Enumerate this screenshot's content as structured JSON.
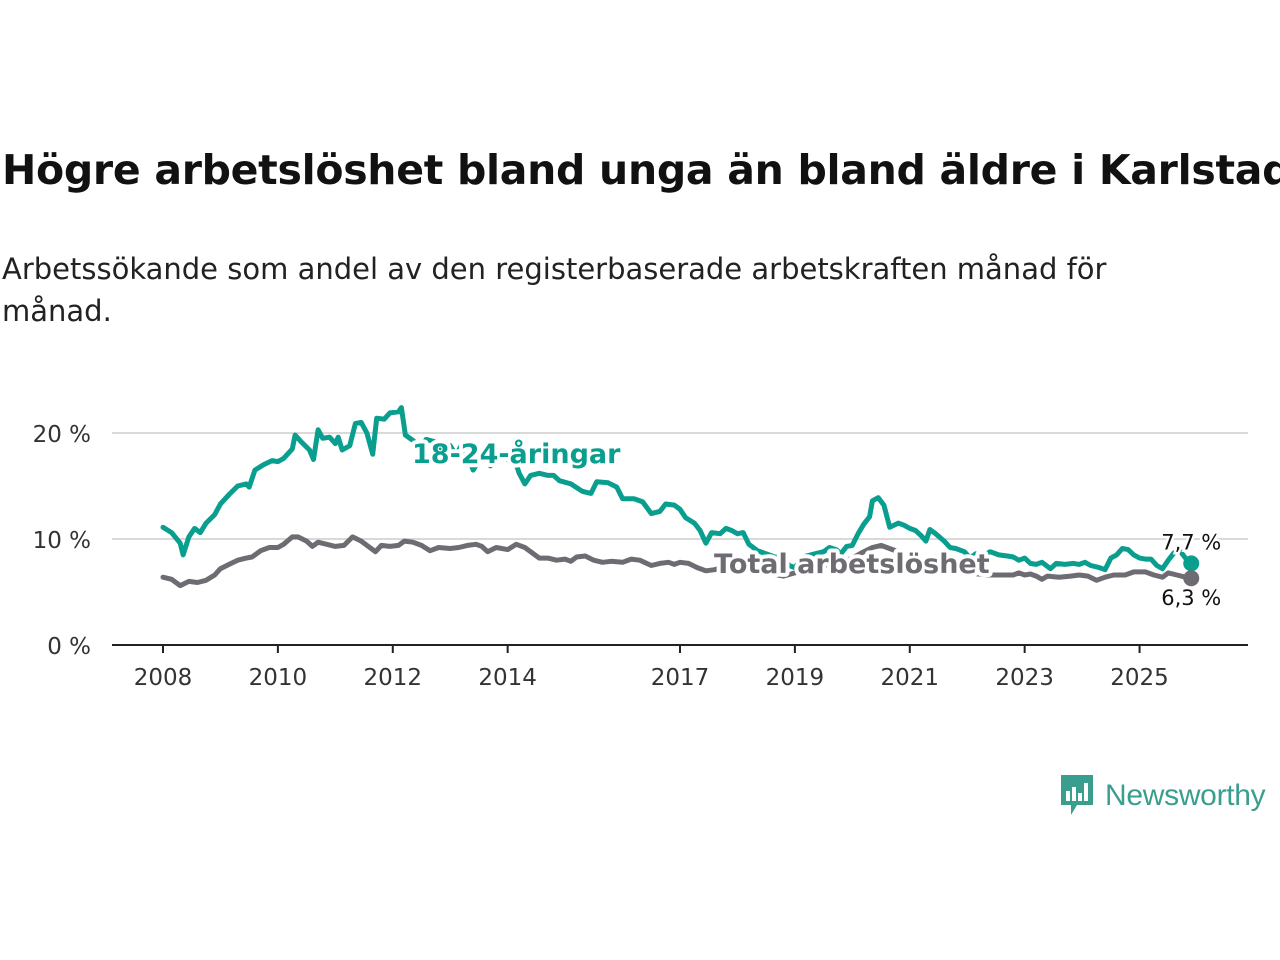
{
  "title": "Högre arbetslöshet bland unga än bland äldre i Karlstad",
  "subtitle": "Arbetssökande som andel av den registerbaserade arbetskraften månad för månad.",
  "logo": {
    "text": "Newsworthy",
    "icon": "newsworthy-chart-bubble-icon"
  },
  "colors": {
    "youth": "#0a9e8e",
    "total": "#6e6c72",
    "grid": "#d9d9d9",
    "axis": "#222222"
  },
  "chart_data": {
    "type": "line",
    "title": "Högre arbetslöshet bland unga än bland äldre i Karlstad",
    "xlabel": "",
    "ylabel": "",
    "xlim": [
      2008,
      2026.0
    ],
    "ylim": [
      0,
      20
    ],
    "grid": true,
    "y_ticks": [
      {
        "value": 0,
        "label": "0 %"
      },
      {
        "value": 10,
        "label": "10 %"
      },
      {
        "value": 20,
        "label": "20 %"
      }
    ],
    "x_ticks": [
      {
        "value": 2008,
        "label": "2008"
      },
      {
        "value": 2010,
        "label": "2010"
      },
      {
        "value": 2012,
        "label": "2012"
      },
      {
        "value": 2014,
        "label": "2014"
      },
      {
        "value": 2017,
        "label": "2017"
      },
      {
        "value": 2019,
        "label": "2019"
      },
      {
        "value": 2021,
        "label": "2021"
      },
      {
        "value": 2023,
        "label": "2023"
      },
      {
        "value": 2025,
        "label": "2025"
      }
    ],
    "series": [
      {
        "name": "18-24-åringar",
        "label": "18-24-åringar",
        "color": "#0a9e8e",
        "end_label": "7,7 %",
        "points": [
          [
            2008.0,
            11.1
          ],
          [
            2008.15,
            10.6
          ],
          [
            2008.3,
            9.6
          ],
          [
            2008.35,
            8.5
          ],
          [
            2008.45,
            10.2
          ],
          [
            2008.55,
            11.0
          ],
          [
            2008.65,
            10.6
          ],
          [
            2008.75,
            11.5
          ],
          [
            2008.9,
            12.3
          ],
          [
            2009.0,
            13.3
          ],
          [
            2009.15,
            14.2
          ],
          [
            2009.3,
            15.0
          ],
          [
            2009.45,
            15.2
          ],
          [
            2009.5,
            14.9
          ],
          [
            2009.6,
            16.5
          ],
          [
            2009.75,
            17.0
          ],
          [
            2009.9,
            17.4
          ],
          [
            2010.0,
            17.3
          ],
          [
            2010.1,
            17.6
          ],
          [
            2010.25,
            18.5
          ],
          [
            2010.3,
            19.8
          ],
          [
            2010.4,
            19.2
          ],
          [
            2010.55,
            18.4
          ],
          [
            2010.62,
            17.5
          ],
          [
            2010.7,
            20.3
          ],
          [
            2010.78,
            19.5
          ],
          [
            2010.9,
            19.6
          ],
          [
            2011.0,
            19.0
          ],
          [
            2011.05,
            19.6
          ],
          [
            2011.12,
            18.4
          ],
          [
            2011.25,
            18.8
          ],
          [
            2011.35,
            20.9
          ],
          [
            2011.45,
            21.0
          ],
          [
            2011.55,
            20.0
          ],
          [
            2011.65,
            18.0
          ],
          [
            2011.72,
            21.4
          ],
          [
            2011.85,
            21.3
          ],
          [
            2011.95,
            21.9
          ],
          [
            2012.1,
            22.0
          ],
          [
            2012.15,
            22.4
          ],
          [
            2012.22,
            19.8
          ],
          [
            2012.35,
            19.3
          ],
          [
            2012.5,
            18.5
          ],
          [
            2012.58,
            19.4
          ],
          [
            2012.72,
            19.2
          ],
          [
            2012.85,
            18.4
          ],
          [
            2013.0,
            18.8
          ],
          [
            2013.1,
            17.9
          ],
          [
            2013.2,
            18.9
          ],
          [
            2013.3,
            17.9
          ],
          [
            2013.4,
            16.5
          ],
          [
            2013.5,
            17.4
          ],
          [
            2013.6,
            18.0
          ],
          [
            2013.7,
            16.9
          ],
          [
            2013.8,
            18.0
          ],
          [
            2013.95,
            18.0
          ],
          [
            2014.05,
            17.2
          ],
          [
            2014.12,
            17.5
          ],
          [
            2014.2,
            16.2
          ],
          [
            2014.3,
            15.2
          ],
          [
            2014.4,
            16.0
          ],
          [
            2014.55,
            16.2
          ],
          [
            2014.7,
            16.0
          ],
          [
            2014.8,
            16.0
          ],
          [
            2014.9,
            15.5
          ],
          [
            2015.1,
            15.2
          ],
          [
            2015.3,
            14.5
          ],
          [
            2015.45,
            14.3
          ],
          [
            2015.55,
            15.4
          ],
          [
            2015.75,
            15.3
          ],
          [
            2015.9,
            14.9
          ],
          [
            2016.0,
            13.8
          ],
          [
            2016.2,
            13.8
          ],
          [
            2016.35,
            13.5
          ],
          [
            2016.5,
            12.4
          ],
          [
            2016.65,
            12.6
          ],
          [
            2016.75,
            13.3
          ],
          [
            2016.9,
            13.2
          ],
          [
            2017.0,
            12.8
          ],
          [
            2017.1,
            12.0
          ],
          [
            2017.25,
            11.5
          ],
          [
            2017.35,
            10.8
          ],
          [
            2017.45,
            9.6
          ],
          [
            2017.55,
            10.6
          ],
          [
            2017.7,
            10.5
          ],
          [
            2017.8,
            11.0
          ],
          [
            2017.9,
            10.8
          ],
          [
            2018.0,
            10.5
          ],
          [
            2018.1,
            10.6
          ],
          [
            2018.2,
            9.5
          ],
          [
            2018.35,
            8.9
          ],
          [
            2018.5,
            8.6
          ],
          [
            2018.65,
            8.3
          ],
          [
            2018.8,
            8.2
          ],
          [
            2018.9,
            7.5
          ],
          [
            2019.0,
            7.3
          ],
          [
            2019.1,
            8.0
          ],
          [
            2019.2,
            8.4
          ],
          [
            2019.35,
            8.6
          ],
          [
            2019.5,
            8.8
          ],
          [
            2019.6,
            9.2
          ],
          [
            2019.72,
            9.0
          ],
          [
            2019.8,
            8.6
          ],
          [
            2019.9,
            9.3
          ],
          [
            2020.0,
            9.4
          ],
          [
            2020.1,
            10.5
          ],
          [
            2020.2,
            11.4
          ],
          [
            2020.3,
            12.1
          ],
          [
            2020.35,
            13.6
          ],
          [
            2020.45,
            13.9
          ],
          [
            2020.55,
            13.2
          ],
          [
            2020.65,
            11.1
          ],
          [
            2020.8,
            11.5
          ],
          [
            2020.9,
            11.3
          ],
          [
            2021.0,
            11.0
          ],
          [
            2021.1,
            10.8
          ],
          [
            2021.2,
            10.3
          ],
          [
            2021.28,
            9.8
          ],
          [
            2021.35,
            10.9
          ],
          [
            2021.45,
            10.5
          ],
          [
            2021.6,
            9.8
          ],
          [
            2021.7,
            9.2
          ],
          [
            2021.8,
            9.1
          ],
          [
            2021.95,
            8.8
          ],
          [
            2022.05,
            8.2
          ],
          [
            2022.15,
            8.6
          ],
          [
            2022.3,
            8.5
          ],
          [
            2022.4,
            8.8
          ],
          [
            2022.55,
            8.5
          ],
          [
            2022.7,
            8.4
          ],
          [
            2022.8,
            8.3
          ],
          [
            2022.9,
            8.0
          ],
          [
            2023.0,
            8.2
          ],
          [
            2023.1,
            7.7
          ],
          [
            2023.2,
            7.6
          ],
          [
            2023.3,
            7.8
          ],
          [
            2023.45,
            7.2
          ],
          [
            2023.55,
            7.7
          ],
          [
            2023.7,
            7.6
          ],
          [
            2023.85,
            7.7
          ],
          [
            2023.95,
            7.6
          ],
          [
            2024.05,
            7.8
          ],
          [
            2024.15,
            7.5
          ],
          [
            2024.3,
            7.3
          ],
          [
            2024.4,
            7.1
          ],
          [
            2024.5,
            8.2
          ],
          [
            2024.6,
            8.5
          ],
          [
            2024.7,
            9.1
          ],
          [
            2024.8,
            9.0
          ],
          [
            2024.9,
            8.5
          ],
          [
            2025.0,
            8.2
          ],
          [
            2025.1,
            8.1
          ],
          [
            2025.2,
            8.1
          ],
          [
            2025.3,
            7.5
          ],
          [
            2025.4,
            7.2
          ],
          [
            2025.5,
            8.0
          ],
          [
            2025.6,
            8.7
          ],
          [
            2025.7,
            8.9
          ],
          [
            2025.8,
            8.2
          ],
          [
            2025.9,
            7.7
          ]
        ]
      },
      {
        "name": "Total arbetslöshet",
        "label": "Total arbetslöshet",
        "color": "#6e6c72",
        "end_label": "6,3 %",
        "points": [
          [
            2008.0,
            6.4
          ],
          [
            2008.15,
            6.2
          ],
          [
            2008.3,
            5.6
          ],
          [
            2008.45,
            6.0
          ],
          [
            2008.6,
            5.9
          ],
          [
            2008.75,
            6.1
          ],
          [
            2008.9,
            6.6
          ],
          [
            2009.0,
            7.2
          ],
          [
            2009.15,
            7.6
          ],
          [
            2009.3,
            8.0
          ],
          [
            2009.45,
            8.2
          ],
          [
            2009.55,
            8.3
          ],
          [
            2009.7,
            8.9
          ],
          [
            2009.85,
            9.2
          ],
          [
            2010.0,
            9.2
          ],
          [
            2010.1,
            9.5
          ],
          [
            2010.25,
            10.2
          ],
          [
            2010.35,
            10.2
          ],
          [
            2010.5,
            9.8
          ],
          [
            2010.6,
            9.3
          ],
          [
            2010.7,
            9.7
          ],
          [
            2010.85,
            9.5
          ],
          [
            2011.0,
            9.3
          ],
          [
            2011.15,
            9.4
          ],
          [
            2011.3,
            10.2
          ],
          [
            2011.45,
            9.8
          ],
          [
            2011.6,
            9.2
          ],
          [
            2011.7,
            8.8
          ],
          [
            2011.8,
            9.4
          ],
          [
            2011.95,
            9.3
          ],
          [
            2012.1,
            9.4
          ],
          [
            2012.2,
            9.8
          ],
          [
            2012.35,
            9.7
          ],
          [
            2012.5,
            9.4
          ],
          [
            2012.65,
            8.9
          ],
          [
            2012.8,
            9.2
          ],
          [
            2013.0,
            9.1
          ],
          [
            2013.15,
            9.2
          ],
          [
            2013.3,
            9.4
          ],
          [
            2013.45,
            9.5
          ],
          [
            2013.55,
            9.3
          ],
          [
            2013.65,
            8.8
          ],
          [
            2013.8,
            9.2
          ],
          [
            2014.0,
            9.0
          ],
          [
            2014.15,
            9.5
          ],
          [
            2014.3,
            9.2
          ],
          [
            2014.4,
            8.8
          ],
          [
            2014.55,
            8.2
          ],
          [
            2014.7,
            8.2
          ],
          [
            2014.85,
            8.0
          ],
          [
            2015.0,
            8.1
          ],
          [
            2015.1,
            7.9
          ],
          [
            2015.2,
            8.3
          ],
          [
            2015.35,
            8.4
          ],
          [
            2015.5,
            8.0
          ],
          [
            2015.65,
            7.8
          ],
          [
            2015.8,
            7.9
          ],
          [
            2016.0,
            7.8
          ],
          [
            2016.15,
            8.1
          ],
          [
            2016.3,
            8.0
          ],
          [
            2016.5,
            7.5
          ],
          [
            2016.65,
            7.7
          ],
          [
            2016.8,
            7.8
          ],
          [
            2016.9,
            7.6
          ],
          [
            2017.0,
            7.8
          ],
          [
            2017.15,
            7.7
          ],
          [
            2017.3,
            7.3
          ],
          [
            2017.45,
            7.0
          ],
          [
            2017.6,
            7.1
          ],
          [
            2017.8,
            7.4
          ],
          [
            2018.0,
            7.2
          ],
          [
            2018.2,
            7.0
          ],
          [
            2018.4,
            6.8
          ],
          [
            2018.6,
            6.7
          ],
          [
            2018.8,
            6.5
          ],
          [
            2019.0,
            6.8
          ],
          [
            2019.2,
            7.2
          ],
          [
            2019.4,
            7.4
          ],
          [
            2019.6,
            7.6
          ],
          [
            2019.8,
            7.8
          ],
          [
            2020.0,
            8.2
          ],
          [
            2020.2,
            8.8
          ],
          [
            2020.35,
            9.2
          ],
          [
            2020.5,
            9.4
          ],
          [
            2020.7,
            9.0
          ],
          [
            2020.9,
            8.6
          ],
          [
            2021.0,
            8.4
          ],
          [
            2021.2,
            8.0
          ],
          [
            2021.4,
            7.6
          ],
          [
            2021.6,
            7.3
          ],
          [
            2021.8,
            7.0
          ],
          [
            2022.0,
            6.8
          ],
          [
            2022.2,
            6.7
          ],
          [
            2022.4,
            6.6
          ],
          [
            2022.6,
            6.6
          ],
          [
            2022.8,
            6.6
          ],
          [
            2022.9,
            6.8
          ],
          [
            2023.0,
            6.6
          ],
          [
            2023.1,
            6.7
          ],
          [
            2023.2,
            6.5
          ],
          [
            2023.3,
            6.2
          ],
          [
            2023.4,
            6.5
          ],
          [
            2023.6,
            6.4
          ],
          [
            2023.8,
            6.5
          ],
          [
            2023.95,
            6.6
          ],
          [
            2024.1,
            6.5
          ],
          [
            2024.25,
            6.1
          ],
          [
            2024.4,
            6.4
          ],
          [
            2024.55,
            6.6
          ],
          [
            2024.75,
            6.6
          ],
          [
            2024.9,
            6.9
          ],
          [
            2025.1,
            6.9
          ],
          [
            2025.25,
            6.6
          ],
          [
            2025.4,
            6.4
          ],
          [
            2025.5,
            6.8
          ],
          [
            2025.65,
            6.6
          ],
          [
            2025.8,
            6.4
          ],
          [
            2025.9,
            6.3
          ]
        ]
      }
    ]
  }
}
